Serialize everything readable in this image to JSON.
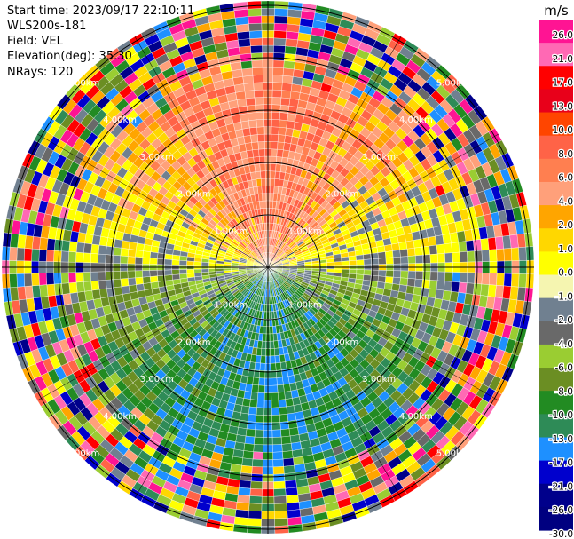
{
  "header": {
    "start_time": "Start time: 2023/09/17 22:10:11",
    "instrument": "WLS200s-181",
    "field": "Field: VEL",
    "elevation": "Elevation(deg): 35.30",
    "nrays": "NRays: 120"
  },
  "colors": {
    "background": "#ffffff",
    "ring_line": "#000000"
  },
  "chart_data": {
    "type": "heatmap",
    "subtype": "polar-ppi-scan",
    "field": "VEL",
    "units": "m/s",
    "elevation_deg": 35.3,
    "n_rays": 120,
    "range_rings": [
      {
        "label": "1.00km"
      },
      {
        "label": "2.00km"
      },
      {
        "label": "3.00km"
      },
      {
        "label": "4.00km"
      },
      {
        "label": "5.00km"
      }
    ],
    "pattern": {
      "north_half": "positive velocities (about 2 to 8 m/s)",
      "south_half": "negative velocities (about -2 to -10 m/s)",
      "outer_gates": "noisy values covering the full color scale"
    },
    "colorbar": {
      "title": "m/s",
      "ticks": [
        "26.0",
        "21.0",
        "17.0",
        "13.0",
        "10.0",
        "8.0",
        "6.0",
        "4.0",
        "2.0",
        "1.0",
        "0.0",
        "-1.0",
        "-2.0",
        "-4.0",
        "-6.0",
        "-8.0",
        "-10.0",
        "-13.0",
        "-17.0",
        "-21.0",
        "-26.0",
        "-30.0"
      ],
      "colors": [
        "#ff1493",
        "#ff69b4",
        "#ff0000",
        "#e8001a",
        "#ff4500",
        "#ff6347",
        "#ff7f50",
        "#ffa07a",
        "#ffa500",
        "#ffd700",
        "#ffff00",
        "#f5f5b0",
        "#708090",
        "#696969",
        "#9acd32",
        "#6b8e23",
        "#228b22",
        "#2e8b57",
        "#1e90ff",
        "#0000cd",
        "#00008b",
        "#000080"
      ]
    }
  }
}
